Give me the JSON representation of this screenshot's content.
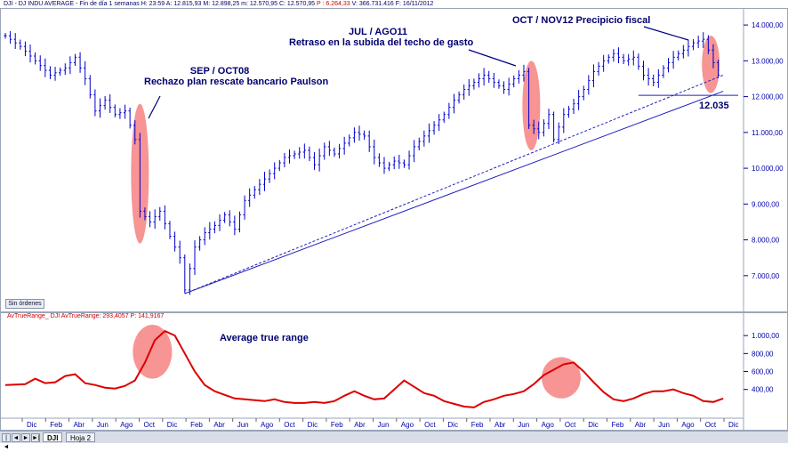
{
  "window": {
    "header": "DJI - DJ INDU AVERAGE - Fin de día 1 semanas  H: 23:59  A: 12.815,93  M: 12.898,25  m: 12.570,95  C: 12.570,95",
    "header_change": "P : 6.264,33",
    "header_extra": "V: 366.731.416  F: 16/11/2012",
    "sin_ordenes_label": "Sin órdenes",
    "tabs": [
      "DJI",
      "Hoja 2"
    ],
    "nav_buttons": [
      "|◄",
      "◄",
      "►",
      "►|"
    ]
  },
  "annotations": {
    "sep_oct08": [
      "SEP / OCT08",
      "Rechazo plan rescate bancario Paulson"
    ],
    "jul_ago11": [
      "JUL / AGO11",
      "Retraso en la subida del techo de gasto"
    ],
    "oct_nov12": "OCT / NOV12 Precipicio fiscal",
    "support_value": "12.035",
    "atr_label": "Average true range"
  },
  "indicator": {
    "header": "AvTrueRange_ DJI  AvTrueRange: 293,4057  P: 141,9167"
  },
  "colors": {
    "candle": "#0000cc",
    "atr_line": "#dd0000",
    "highlight": "rgba(240,60,60,0.55)",
    "annotation": "#000070",
    "axis": "#0000aa"
  },
  "chart_data": [
    {
      "type": "candlestick",
      "title": "",
      "ylim": [
        6300,
        14400
      ],
      "y_ticks": [
        "14.000,00",
        "13.000,00",
        "12.000,00",
        "11.000,00",
        "10.000,00",
        "9.000,00",
        "8.000,00",
        "7.000,00"
      ],
      "y_tick_values": [
        14000,
        13000,
        12000,
        11000,
        10000,
        9000,
        8000,
        7000
      ],
      "x_labels": [
        "Dic",
        "Feb",
        "Abr",
        "Jun",
        "Ago",
        "Oct",
        "Dic",
        "Feb",
        "Abr",
        "Jun",
        "Ago",
        "Oct",
        "Dic",
        "Feb",
        "Abr",
        "Jun",
        "Ago",
        "Oct",
        "Dic",
        "Feb",
        "Abr",
        "Jun",
        "Ago",
        "Oct",
        "Dic",
        "Feb",
        "Abr",
        "Jun",
        "Ago",
        "Oct",
        "Dic",
        "Feb"
      ],
      "close_path": [
        [
          0,
          13700
        ],
        [
          3,
          13400
        ],
        [
          6,
          13000
        ],
        [
          9,
          12600
        ],
        [
          12,
          12800
        ],
        [
          14,
          13100
        ],
        [
          16,
          12500
        ],
        [
          18,
          11600
        ],
        [
          20,
          11900
        ],
        [
          22,
          11500
        ],
        [
          24,
          11600
        ],
        [
          26,
          10800
        ],
        [
          27,
          8800
        ],
        [
          29,
          8500
        ],
        [
          31,
          8800
        ],
        [
          33,
          8100
        ],
        [
          35,
          7500
        ],
        [
          36,
          6600
        ],
        [
          38,
          7800
        ],
        [
          40,
          8200
        ],
        [
          42,
          8400
        ],
        [
          44,
          8700
        ],
        [
          46,
          8300
        ],
        [
          48,
          9100
        ],
        [
          50,
          9400
        ],
        [
          52,
          9700
        ],
        [
          54,
          10000
        ],
        [
          56,
          10300
        ],
        [
          58,
          10400
        ],
        [
          60,
          10500
        ],
        [
          62,
          10100
        ],
        [
          64,
          10600
        ],
        [
          66,
          10400
        ],
        [
          68,
          10700
        ],
        [
          70,
          11000
        ],
        [
          72,
          10900
        ],
        [
          74,
          10300
        ],
        [
          76,
          10000
        ],
        [
          78,
          10200
        ],
        [
          80,
          10100
        ],
        [
          82,
          10600
        ],
        [
          84,
          10900
        ],
        [
          86,
          11200
        ],
        [
          88,
          11500
        ],
        [
          90,
          11900
        ],
        [
          92,
          12200
        ],
        [
          94,
          12400
        ],
        [
          96,
          12600
        ],
        [
          98,
          12400
        ],
        [
          100,
          12200
        ],
        [
          102,
          12500
        ],
        [
          104,
          12700
        ],
        [
          105,
          11200
        ],
        [
          107,
          11000
        ],
        [
          109,
          11500
        ],
        [
          110,
          10800
        ],
        [
          112,
          11500
        ],
        [
          114,
          11800
        ],
        [
          116,
          12200
        ],
        [
          118,
          12700
        ],
        [
          120,
          13000
        ],
        [
          122,
          13200
        ],
        [
          124,
          13000
        ],
        [
          126,
          13100
        ],
        [
          128,
          12600
        ],
        [
          130,
          12400
        ],
        [
          132,
          12800
        ],
        [
          134,
          13100
        ],
        [
          136,
          13300
        ],
        [
          138,
          13500
        ],
        [
          140,
          13600
        ],
        [
          141,
          13300
        ],
        [
          143,
          12600
        ]
      ],
      "support_lines": [
        {
          "style": "solid",
          "from": [
            36,
            6500
          ],
          "to": [
            144,
            12150
          ]
        },
        {
          "style": "dashed",
          "from": [
            36,
            6500
          ],
          "to": [
            144,
            12600
          ]
        },
        {
          "style": "solid",
          "from": [
            127,
            12035
          ],
          "to": [
            147,
            12035
          ]
        }
      ],
      "highlights": [
        {
          "cx": 27,
          "ymin": 7900,
          "ymax": 11800
        },
        {
          "cx": 105.5,
          "ymin": 10500,
          "ymax": 13000
        },
        {
          "cx": 141.5,
          "ymin": 12100,
          "ymax": 13700
        }
      ]
    },
    {
      "type": "line",
      "series": [],
      "ylim": [
        100,
        1150
      ],
      "y_ticks": [
        "1.000,00",
        "800,00",
        "600,00",
        "400,00"
      ],
      "y_tick_values": [
        1000,
        800,
        600,
        400
      ],
      "values": [
        [
          0,
          450
        ],
        [
          4,
          460
        ],
        [
          6,
          520
        ],
        [
          8,
          470
        ],
        [
          10,
          480
        ],
        [
          12,
          550
        ],
        [
          14,
          570
        ],
        [
          16,
          470
        ],
        [
          18,
          450
        ],
        [
          20,
          420
        ],
        [
          22,
          410
        ],
        [
          24,
          440
        ],
        [
          26,
          500
        ],
        [
          28,
          700
        ],
        [
          30,
          950
        ],
        [
          32,
          1050
        ],
        [
          34,
          1000
        ],
        [
          36,
          800
        ],
        [
          38,
          600
        ],
        [
          40,
          450
        ],
        [
          42,
          380
        ],
        [
          44,
          340
        ],
        [
          46,
          300
        ],
        [
          48,
          290
        ],
        [
          50,
          280
        ],
        [
          52,
          270
        ],
        [
          54,
          290
        ],
        [
          56,
          260
        ],
        [
          58,
          250
        ],
        [
          60,
          250
        ],
        [
          62,
          260
        ],
        [
          64,
          250
        ],
        [
          66,
          270
        ],
        [
          68,
          330
        ],
        [
          70,
          380
        ],
        [
          72,
          330
        ],
        [
          74,
          290
        ],
        [
          76,
          300
        ],
        [
          78,
          400
        ],
        [
          80,
          500
        ],
        [
          82,
          430
        ],
        [
          84,
          360
        ],
        [
          86,
          330
        ],
        [
          88,
          270
        ],
        [
          90,
          240
        ],
        [
          92,
          210
        ],
        [
          94,
          200
        ],
        [
          96,
          260
        ],
        [
          98,
          290
        ],
        [
          100,
          330
        ],
        [
          102,
          350
        ],
        [
          104,
          380
        ],
        [
          106,
          460
        ],
        [
          108,
          560
        ],
        [
          110,
          620
        ],
        [
          112,
          680
        ],
        [
          114,
          700
        ],
        [
          116,
          600
        ],
        [
          118,
          480
        ],
        [
          120,
          370
        ],
        [
          122,
          290
        ],
        [
          124,
          270
        ],
        [
          126,
          300
        ],
        [
          128,
          350
        ],
        [
          130,
          380
        ],
        [
          132,
          380
        ],
        [
          134,
          400
        ],
        [
          136,
          360
        ],
        [
          138,
          330
        ],
        [
          140,
          270
        ],
        [
          142,
          260
        ],
        [
          144,
          300
        ]
      ],
      "highlights": [
        {
          "cx": 29.5,
          "ymin": 520,
          "ymax": 1120
        },
        {
          "cx": 111.5,
          "ymin": 300,
          "ymax": 760
        }
      ]
    }
  ]
}
